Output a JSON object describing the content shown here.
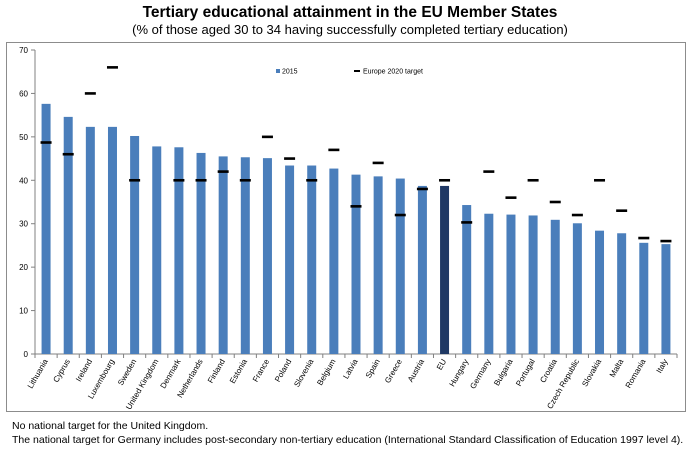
{
  "chart_data": {
    "type": "bar",
    "title": "Tertiary educational attainment in the EU Member States",
    "subtitle": "(% of those aged 30 to 34 having successfully completed tertiary education)",
    "categories": [
      "Lithuania",
      "Cyprus",
      "Ireland",
      "Luxembourg",
      "Sweden",
      "United Kingdom",
      "Denmark",
      "Netherlands",
      "Finland",
      "Estonia",
      "France",
      "Poland",
      "Slovenia",
      "Belgium",
      "Latvia",
      "Spain",
      "Greece",
      "Austria",
      "EU",
      "Hungary",
      "Germany",
      "Bulgaria",
      "Portugal",
      "Croatia",
      "Czech Republic",
      "Slovakia",
      "Malta",
      "Romania",
      "Italy"
    ],
    "series": [
      {
        "name": "2015",
        "type": "bar",
        "color": "#4a7ebb",
        "highlight_color": "#1f3864",
        "highlight_category": "EU",
        "values": [
          57.6,
          54.6,
          52.3,
          52.3,
          50.2,
          47.8,
          47.6,
          46.3,
          45.5,
          45.3,
          45.1,
          43.4,
          43.4,
          42.7,
          41.3,
          40.9,
          40.4,
          38.7,
          38.7,
          34.3,
          32.3,
          32.1,
          31.9,
          30.9,
          30.1,
          28.4,
          27.8,
          25.6,
          25.3
        ]
      },
      {
        "name": "Europe 2020 target",
        "type": "marker",
        "color": "#000000",
        "values": [
          48.7,
          46,
          60,
          66,
          40,
          null,
          40,
          40,
          42,
          40,
          50,
          45,
          40,
          47,
          34,
          44,
          32,
          38,
          40,
          30.3,
          42,
          36,
          40,
          35,
          32,
          40,
          33,
          26.7,
          26
        ]
      }
    ],
    "ylim": [
      0,
      70
    ],
    "yticks": [
      0,
      10,
      20,
      30,
      40,
      50,
      60,
      70
    ],
    "xlabel": "",
    "ylabel": "",
    "grid": false,
    "legend_position": "top-right"
  },
  "notes": [
    "No national target for the United Kingdom.",
    "The national target for Germany includes post-secondary non-tertiary education (International Standard Classification of Education 1997 level 4)."
  ]
}
